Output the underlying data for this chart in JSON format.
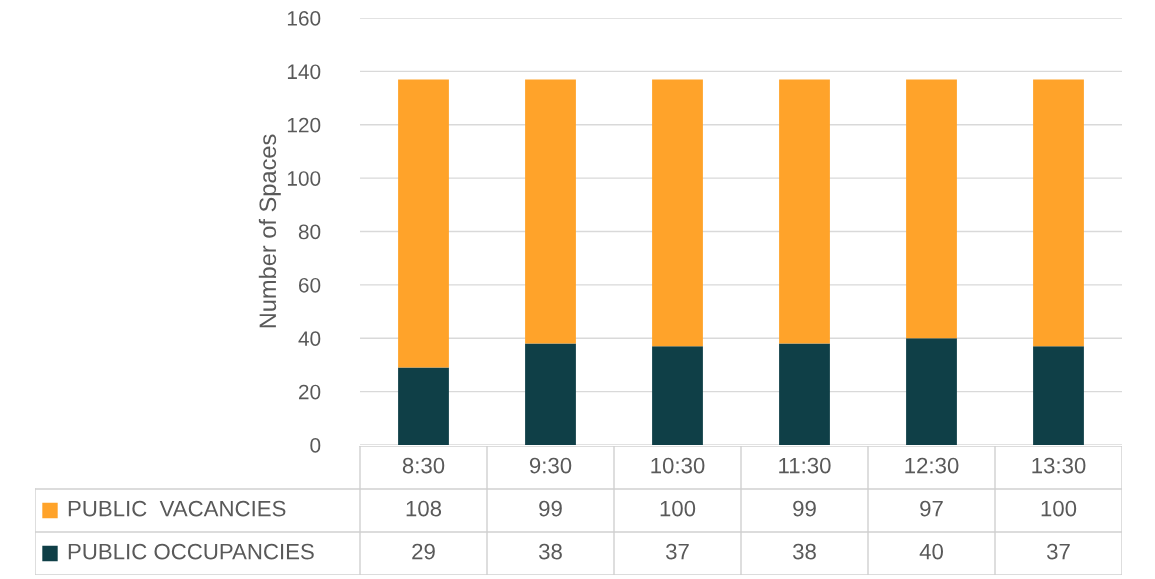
{
  "chart_data": {
    "type": "bar",
    "stacked": true,
    "ylabel": "Number of Spaces",
    "categories": [
      "8:30",
      "9:30",
      "10:30",
      "11:30",
      "12:30",
      "13:30"
    ],
    "series": [
      {
        "name": "PUBLIC OCCUPANCIES",
        "color": "#0f3f47",
        "values": [
          29,
          38,
          37,
          38,
          40,
          37
        ]
      },
      {
        "name": "PUBLIC  VACANCIES",
        "color": "#ffa32a",
        "values": [
          108,
          99,
          100,
          99,
          97,
          100
        ]
      }
    ],
    "ylim": [
      0,
      160
    ],
    "yticks": [
      0,
      20,
      40,
      60,
      80,
      100,
      120,
      140,
      160
    ],
    "grid": "y",
    "legend": "bottom",
    "data_labels": true
  }
}
